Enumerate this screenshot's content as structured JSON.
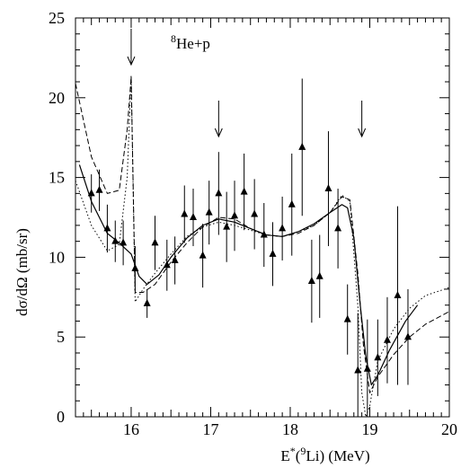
{
  "chart_data": {
    "type": "scatter",
    "title": "",
    "annotation": {
      "label": "He+p",
      "superscript": "8"
    },
    "xlabel": {
      "prefix": "E",
      "star": "*",
      "open": "(",
      "superscript": "9",
      "rest": "Li) (MeV)"
    },
    "ylabel": "dσ/dΩ (mb/sr)",
    "xlim": [
      15.3,
      20
    ],
    "ylim": [
      0,
      25
    ],
    "x_ticks": [
      "16",
      "17",
      "18",
      "19",
      "20"
    ],
    "x_tick_values": [
      16,
      17,
      18,
      19,
      20
    ],
    "y_ticks": [
      "0",
      "5",
      "10",
      "15",
      "20",
      "25"
    ],
    "y_tick_values": [
      0,
      5,
      10,
      15,
      20,
      25
    ],
    "grid": false,
    "legend": "none",
    "resonance_arrows_x": [
      16.0,
      17.1,
      18.9
    ],
    "series": [
      {
        "marker": "triangle",
        "x": [
          15.5,
          15.6,
          15.7,
          15.8,
          15.9,
          16.05,
          16.2,
          16.3,
          16.45,
          16.55,
          16.67,
          16.78,
          16.9,
          16.98,
          17.1,
          17.2,
          17.3,
          17.42,
          17.55,
          17.67,
          17.78,
          17.9,
          18.02,
          18.15,
          18.27,
          18.37,
          18.48,
          18.6,
          18.72,
          18.85,
          18.97,
          19.1,
          19.22,
          19.35,
          19.48
        ],
        "y": [
          14.0,
          14.2,
          11.8,
          11.0,
          10.9,
          9.3,
          7.1,
          10.9,
          9.5,
          9.8,
          12.7,
          12.5,
          10.1,
          12.8,
          14.0,
          11.9,
          12.6,
          14.1,
          12.7,
          11.4,
          10.2,
          11.8,
          13.3,
          16.9,
          8.5,
          8.8,
          14.3,
          11.8,
          6.1,
          2.9,
          3.0,
          3.7,
          4.8,
          7.6,
          5.0
        ],
        "yerr": [
          1.2,
          1.3,
          1.5,
          1.3,
          1.4,
          1.4,
          0.9,
          1.7,
          1.6,
          1.5,
          1.8,
          1.8,
          2.0,
          2.0,
          2.6,
          2.2,
          2.2,
          2.4,
          2.2,
          2.0,
          2.0,
          2.0,
          3.2,
          4.3,
          2.6,
          2.6,
          3.6,
          2.5,
          2.2,
          3.6,
          3.1,
          2.4,
          2.7,
          5.6,
          3.0
        ]
      },
      {
        "style": "solid",
        "x": [
          15.35,
          15.5,
          15.7,
          15.85,
          16.0,
          16.1,
          16.2,
          16.35,
          16.5,
          16.7,
          16.9,
          17.1,
          17.3,
          17.5,
          17.7,
          17.9,
          18.1,
          18.3,
          18.5,
          18.65,
          18.72,
          18.8,
          18.88,
          18.95,
          19.02,
          19.1,
          19.25,
          19.45,
          19.6
        ],
        "y": [
          15.8,
          13.5,
          11.5,
          10.9,
          10.2,
          8.8,
          8.3,
          8.9,
          10.0,
          11.2,
          12.0,
          12.4,
          12.2,
          11.8,
          11.4,
          11.3,
          11.6,
          12.1,
          12.8,
          13.3,
          13.1,
          11.2,
          7.0,
          3.8,
          2.0,
          2.6,
          4.2,
          6.0,
          7.0
        ]
      },
      {
        "style": "dashed",
        "x": [
          15.3,
          15.5,
          15.7,
          15.85,
          15.95,
          16.0,
          16.05,
          16.15,
          16.3,
          16.5,
          16.7,
          16.9,
          17.1,
          17.3,
          17.5,
          17.7,
          17.9,
          18.1,
          18.3,
          18.5,
          18.65,
          18.75,
          18.85,
          18.92,
          19.0,
          19.1,
          19.3,
          19.5,
          19.7,
          20.0
        ],
        "y": [
          20.9,
          16.3,
          14.0,
          14.2,
          18.0,
          21.3,
          7.8,
          7.8,
          8.3,
          9.7,
          10.9,
          11.9,
          12.5,
          12.4,
          11.8,
          11.4,
          11.3,
          11.5,
          12.0,
          12.8,
          13.8,
          13.6,
          9.0,
          4.5,
          1.5,
          2.5,
          3.9,
          5.0,
          5.8,
          6.6
        ]
      },
      {
        "style": "dotted",
        "x": [
          15.3,
          15.5,
          15.7,
          15.85,
          15.95,
          16.0,
          16.05,
          16.15,
          16.3,
          16.5,
          16.7,
          16.9,
          17.1,
          17.3,
          17.5,
          17.7,
          17.9,
          18.1,
          18.3,
          18.5,
          18.65,
          18.75,
          18.85,
          18.9,
          18.95,
          19.0,
          19.1,
          19.3,
          19.5,
          19.7,
          20.0
        ],
        "y": [
          14.8,
          12.0,
          10.4,
          10.8,
          15.0,
          21.4,
          7.2,
          8.0,
          9.0,
          10.2,
          11.3,
          11.9,
          12.2,
          12.0,
          11.7,
          11.4,
          11.3,
          11.6,
          12.0,
          12.8,
          13.9,
          13.5,
          7.0,
          1.5,
          0.0,
          0.7,
          3.5,
          5.5,
          6.8,
          7.6,
          8.1
        ]
      }
    ]
  }
}
